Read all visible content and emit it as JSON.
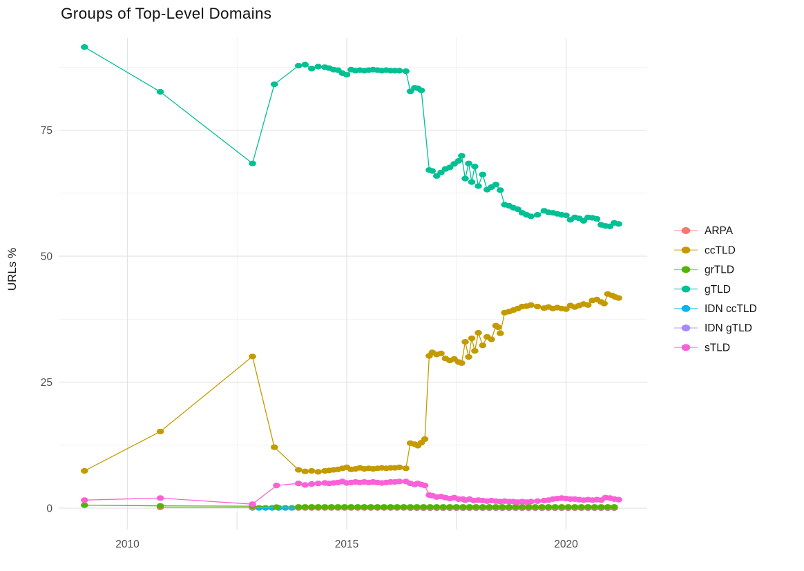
{
  "title": "Groups of Top-Level Domains",
  "axes": {
    "y_label": "URLs %"
  },
  "colors": {
    "background": "#ffffff",
    "grid_major": "#e4e4e4",
    "grid_minor": "#f1f1f1",
    "tick_text": "#4d4d4d",
    "tick_mark": "#e7e7e7"
  },
  "chart_data": {
    "type": "line",
    "title": "Groups of Top-Level Domains",
    "xlabel": "",
    "ylabel": "URLs %",
    "xlim": [
      2008.4,
      2021.8
    ],
    "ylim": [
      -0.7,
      93.3
    ],
    "x_major_ticks": [
      2010,
      2015,
      2020
    ],
    "y_major_ticks": [
      0,
      25,
      50,
      75
    ],
    "x_minor_gridlines": [
      2012.5,
      2017.5
    ],
    "y_minor_gridlines": [
      12.5,
      37.5,
      62.5,
      87.5
    ],
    "grid": true,
    "legend_position": "right",
    "series": [
      {
        "name": "ARPA",
        "color": "#F8766D",
        "points": [
          [
            2010.75,
            0.15
          ],
          [
            2012.85,
            0.1
          ]
        ],
        "run": {
          "from": 2013.9,
          "to": 2021.2,
          "step": 0.15,
          "value": 0.05
        }
      },
      {
        "name": "ccTLD",
        "color": "#C49A00",
        "points": [
          [
            2009.02,
            7.4
          ],
          [
            2010.75,
            15.2
          ],
          [
            2012.85,
            30.1
          ],
          [
            2013.35,
            12.1
          ],
          [
            2013.9,
            7.6
          ],
          [
            2014.05,
            7.3
          ],
          [
            2014.2,
            7.4
          ],
          [
            2014.35,
            7.2
          ],
          [
            2014.5,
            7.4
          ],
          [
            2014.6,
            7.5
          ],
          [
            2014.7,
            7.6
          ],
          [
            2014.8,
            7.7
          ],
          [
            2014.9,
            7.9
          ],
          [
            2015.0,
            8.1
          ],
          [
            2015.1,
            7.7
          ],
          [
            2015.2,
            7.8
          ],
          [
            2015.3,
            8.0
          ],
          [
            2015.4,
            7.8
          ],
          [
            2015.5,
            7.9
          ],
          [
            2015.6,
            7.8
          ],
          [
            2015.7,
            7.9
          ],
          [
            2015.8,
            8.0
          ],
          [
            2015.9,
            7.9
          ],
          [
            2016.0,
            8.0
          ],
          [
            2016.1,
            8.0
          ],
          [
            2016.2,
            8.1
          ],
          [
            2016.35,
            7.9
          ],
          [
            2016.45,
            12.9
          ],
          [
            2016.55,
            12.7
          ],
          [
            2016.62,
            12.4
          ],
          [
            2016.7,
            13.0
          ],
          [
            2016.78,
            13.7
          ],
          [
            2016.88,
            30.2
          ],
          [
            2016.95,
            30.9
          ],
          [
            2017.05,
            30.5
          ],
          [
            2017.15,
            30.7
          ],
          [
            2017.25,
            29.7
          ],
          [
            2017.35,
            29.3
          ],
          [
            2017.45,
            29.6
          ],
          [
            2017.55,
            29.0
          ],
          [
            2017.62,
            28.8
          ],
          [
            2017.7,
            33.0
          ],
          [
            2017.78,
            30.0
          ],
          [
            2017.85,
            33.7
          ],
          [
            2017.92,
            31.2
          ],
          [
            2018.0,
            34.8
          ],
          [
            2018.1,
            32.3
          ],
          [
            2018.2,
            34.0
          ],
          [
            2018.3,
            33.5
          ],
          [
            2018.4,
            36.2
          ],
          [
            2018.45,
            35.9
          ],
          [
            2018.5,
            34.7
          ],
          [
            2018.6,
            38.8
          ],
          [
            2018.7,
            39.0
          ],
          [
            2018.8,
            39.3
          ],
          [
            2018.9,
            39.6
          ],
          [
            2019.0,
            40.0
          ],
          [
            2019.1,
            40.1
          ],
          [
            2019.2,
            40.3
          ],
          [
            2019.35,
            40.0
          ],
          [
            2019.5,
            39.7
          ],
          [
            2019.6,
            39.9
          ],
          [
            2019.7,
            39.6
          ],
          [
            2019.8,
            39.8
          ],
          [
            2019.9,
            39.6
          ],
          [
            2020.0,
            39.5
          ],
          [
            2020.1,
            40.2
          ],
          [
            2020.2,
            39.9
          ],
          [
            2020.3,
            40.2
          ],
          [
            2020.4,
            40.5
          ],
          [
            2020.5,
            40.3
          ],
          [
            2020.6,
            41.2
          ],
          [
            2020.7,
            41.4
          ],
          [
            2020.8,
            40.9
          ],
          [
            2020.87,
            40.6
          ],
          [
            2020.95,
            42.5
          ],
          [
            2021.05,
            42.2
          ],
          [
            2021.12,
            41.9
          ],
          [
            2021.2,
            41.7
          ]
        ]
      },
      {
        "name": "grTLD",
        "color": "#53B400",
        "points": [
          [
            2009.02,
            0.6
          ],
          [
            2010.75,
            0.45
          ],
          [
            2012.85,
            0.4
          ],
          [
            2013.4,
            0.2
          ]
        ],
        "run": {
          "from": 2013.9,
          "to": 2021.2,
          "step": 0.15,
          "value": 0.25
        }
      },
      {
        "name": "gTLD",
        "color": "#00C094",
        "points": [
          [
            2009.02,
            91.5
          ],
          [
            2010.75,
            82.6
          ],
          [
            2012.85,
            68.4
          ],
          [
            2013.35,
            84.1
          ],
          [
            2013.9,
            87.8
          ],
          [
            2014.05,
            88.0
          ],
          [
            2014.2,
            87.2
          ],
          [
            2014.35,
            87.6
          ],
          [
            2014.5,
            87.5
          ],
          [
            2014.6,
            87.3
          ],
          [
            2014.7,
            87.0
          ],
          [
            2014.8,
            86.9
          ],
          [
            2014.9,
            86.3
          ],
          [
            2015.0,
            86.0
          ],
          [
            2015.1,
            87.0
          ],
          [
            2015.2,
            86.8
          ],
          [
            2015.3,
            86.9
          ],
          [
            2015.4,
            86.8
          ],
          [
            2015.5,
            86.9
          ],
          [
            2015.6,
            87.0
          ],
          [
            2015.7,
            86.9
          ],
          [
            2015.8,
            86.8
          ],
          [
            2015.9,
            86.9
          ],
          [
            2016.0,
            86.8
          ],
          [
            2016.1,
            86.8
          ],
          [
            2016.2,
            86.8
          ],
          [
            2016.35,
            86.7
          ],
          [
            2016.45,
            82.7
          ],
          [
            2016.55,
            83.4
          ],
          [
            2016.62,
            83.3
          ],
          [
            2016.7,
            82.9
          ],
          [
            2016.88,
            67.1
          ],
          [
            2016.95,
            66.9
          ],
          [
            2017.05,
            65.9
          ],
          [
            2017.15,
            66.6
          ],
          [
            2017.25,
            67.3
          ],
          [
            2017.35,
            67.6
          ],
          [
            2017.45,
            68.3
          ],
          [
            2017.55,
            68.9
          ],
          [
            2017.62,
            69.9
          ],
          [
            2017.7,
            65.4
          ],
          [
            2017.78,
            68.4
          ],
          [
            2017.85,
            64.7
          ],
          [
            2017.92,
            67.8
          ],
          [
            2018.0,
            63.9
          ],
          [
            2018.1,
            66.2
          ],
          [
            2018.2,
            63.2
          ],
          [
            2018.3,
            63.7
          ],
          [
            2018.4,
            64.2
          ],
          [
            2018.5,
            63.1
          ],
          [
            2018.6,
            60.2
          ],
          [
            2018.7,
            60.0
          ],
          [
            2018.8,
            59.6
          ],
          [
            2018.9,
            59.3
          ],
          [
            2019.0,
            58.6
          ],
          [
            2019.1,
            58.2
          ],
          [
            2019.2,
            57.9
          ],
          [
            2019.35,
            58.2
          ],
          [
            2019.5,
            59.0
          ],
          [
            2019.6,
            58.7
          ],
          [
            2019.7,
            58.6
          ],
          [
            2019.8,
            58.4
          ],
          [
            2019.9,
            58.2
          ],
          [
            2020.0,
            58.1
          ],
          [
            2020.1,
            57.2
          ],
          [
            2020.2,
            57.7
          ],
          [
            2020.3,
            57.5
          ],
          [
            2020.4,
            57.0
          ],
          [
            2020.5,
            57.7
          ],
          [
            2020.6,
            57.6
          ],
          [
            2020.7,
            57.4
          ],
          [
            2020.8,
            56.2
          ],
          [
            2020.9,
            56.0
          ],
          [
            2021.0,
            55.9
          ],
          [
            2021.1,
            56.6
          ],
          [
            2021.2,
            56.4
          ]
        ]
      },
      {
        "name": "IDN ccTLD",
        "color": "#00B6EB",
        "run": {
          "from": 2012.85,
          "to": 2021.2,
          "step": 0.15,
          "value": 0.05
        }
      },
      {
        "name": "IDN gTLD",
        "color": "#A58AFF",
        "run": {
          "from": 2016.45,
          "to": 2021.2,
          "step": 0.15,
          "value": 0.0
        }
      },
      {
        "name": "sTLD",
        "color": "#FB61D7",
        "points": [
          [
            2009.02,
            1.6
          ],
          [
            2010.75,
            2.0
          ],
          [
            2012.85,
            0.8
          ],
          [
            2013.4,
            4.5
          ],
          [
            2013.9,
            4.9
          ],
          [
            2014.05,
            4.6
          ],
          [
            2014.2,
            4.8
          ],
          [
            2014.35,
            4.9
          ],
          [
            2014.5,
            5.0
          ],
          [
            2014.6,
            4.9
          ],
          [
            2014.7,
            5.0
          ],
          [
            2014.8,
            5.1
          ],
          [
            2014.9,
            5.3
          ],
          [
            2015.0,
            5.0
          ],
          [
            2015.1,
            5.1
          ],
          [
            2015.2,
            5.2
          ],
          [
            2015.3,
            5.1
          ],
          [
            2015.4,
            5.2
          ],
          [
            2015.5,
            5.1
          ],
          [
            2015.6,
            5.2
          ],
          [
            2015.7,
            5.1
          ],
          [
            2015.8,
            5.0
          ],
          [
            2015.9,
            5.1
          ],
          [
            2016.0,
            5.2
          ],
          [
            2016.1,
            5.2
          ],
          [
            2016.2,
            5.3
          ],
          [
            2016.35,
            5.3
          ],
          [
            2016.45,
            4.9
          ],
          [
            2016.55,
            4.7
          ],
          [
            2016.62,
            4.9
          ],
          [
            2016.7,
            4.7
          ],
          [
            2016.78,
            4.5
          ],
          [
            2016.88,
            2.6
          ],
          [
            2016.95,
            2.5
          ],
          [
            2017.05,
            2.2
          ],
          [
            2017.15,
            2.3
          ],
          [
            2017.25,
            2.1
          ],
          [
            2017.35,
            1.9
          ],
          [
            2017.45,
            2.1
          ],
          [
            2017.55,
            1.8
          ],
          [
            2017.65,
            1.8
          ],
          [
            2017.7,
            1.6
          ],
          [
            2017.8,
            1.8
          ],
          [
            2017.9,
            1.5
          ],
          [
            2018.0,
            1.6
          ],
          [
            2018.1,
            1.5
          ],
          [
            2018.2,
            1.4
          ],
          [
            2018.3,
            1.5
          ],
          [
            2018.4,
            1.4
          ],
          [
            2018.5,
            1.3
          ],
          [
            2018.6,
            1.4
          ],
          [
            2018.7,
            1.3
          ],
          [
            2018.8,
            1.3
          ],
          [
            2018.9,
            1.2
          ],
          [
            2019.0,
            1.3
          ],
          [
            2019.1,
            1.2
          ],
          [
            2019.2,
            1.3
          ],
          [
            2019.35,
            1.4
          ],
          [
            2019.5,
            1.5
          ],
          [
            2019.6,
            1.6
          ],
          [
            2019.7,
            1.8
          ],
          [
            2019.8,
            1.9
          ],
          [
            2019.9,
            2.0
          ],
          [
            2020.0,
            1.9
          ],
          [
            2020.1,
            1.8
          ],
          [
            2020.2,
            1.8
          ],
          [
            2020.3,
            1.7
          ],
          [
            2020.4,
            1.6
          ],
          [
            2020.5,
            1.7
          ],
          [
            2020.6,
            1.6
          ],
          [
            2020.7,
            1.7
          ],
          [
            2020.8,
            1.6
          ],
          [
            2020.9,
            2.1
          ],
          [
            2021.0,
            2.0
          ],
          [
            2021.1,
            1.8
          ],
          [
            2021.2,
            1.7
          ]
        ]
      }
    ]
  },
  "legend": {
    "entries": [
      "ARPA",
      "ccTLD",
      "grTLD",
      "gTLD",
      "IDN ccTLD",
      "IDN gTLD",
      "sTLD"
    ]
  }
}
